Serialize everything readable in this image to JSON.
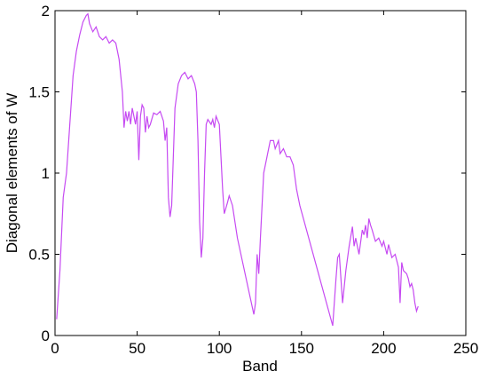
{
  "chart_data": {
    "type": "line",
    "xlabel": "Band",
    "ylabel": "Diagonal elements of W",
    "x": [
      1,
      3,
      5,
      7,
      9,
      11,
      13,
      15,
      17,
      19,
      20,
      21,
      23,
      25,
      27,
      29,
      31,
      33,
      35,
      37,
      39,
      41,
      42,
      43,
      44,
      45,
      46,
      47,
      49,
      50,
      51,
      52,
      53,
      54,
      55,
      56,
      57,
      58,
      60,
      62,
      64,
      66,
      67,
      68,
      69,
      70,
      71,
      72,
      73,
      75,
      77,
      79,
      81,
      83,
      85,
      86,
      87,
      88,
      89,
      90,
      91,
      92,
      93,
      95,
      96,
      97,
      98,
      100,
      101,
      102,
      103,
      105,
      106,
      108,
      111,
      121,
      122,
      123,
      124,
      125,
      127,
      129,
      131,
      133,
      134,
      136,
      137,
      139,
      141,
      143,
      145,
      147,
      149,
      169,
      171,
      172,
      173,
      174,
      175,
      177,
      179,
      181,
      182,
      183,
      185,
      187,
      188,
      189,
      190,
      191,
      192,
      193,
      195,
      197,
      199,
      200,
      202,
      203,
      205,
      207,
      209,
      210,
      211,
      212,
      214,
      215,
      216,
      217,
      218,
      219,
      220,
      221
    ],
    "series": [
      {
        "name": "W",
        "color": "#c64af2",
        "values": [
          0.1,
          0.4,
          0.85,
          1.0,
          1.3,
          1.6,
          1.75,
          1.85,
          1.93,
          1.97,
          1.98,
          1.92,
          1.87,
          1.9,
          1.84,
          1.82,
          1.84,
          1.8,
          1.82,
          1.8,
          1.7,
          1.5,
          1.28,
          1.38,
          1.32,
          1.38,
          1.3,
          1.4,
          1.3,
          1.38,
          1.08,
          1.35,
          1.42,
          1.4,
          1.25,
          1.35,
          1.28,
          1.3,
          1.37,
          1.36,
          1.38,
          1.32,
          1.2,
          1.28,
          0.85,
          0.73,
          0.8,
          1.1,
          1.4,
          1.55,
          1.6,
          1.62,
          1.58,
          1.6,
          1.55,
          1.5,
          1.2,
          0.7,
          0.48,
          0.6,
          1.0,
          1.3,
          1.33,
          1.3,
          1.33,
          1.28,
          1.35,
          1.3,
          1.1,
          0.9,
          0.75,
          0.82,
          0.86,
          0.8,
          0.6,
          0.13,
          0.2,
          0.5,
          0.38,
          0.6,
          1.0,
          1.1,
          1.2,
          1.2,
          1.15,
          1.2,
          1.12,
          1.15,
          1.1,
          1.1,
          1.05,
          0.9,
          0.8,
          0.06,
          0.35,
          0.48,
          0.5,
          0.35,
          0.2,
          0.4,
          0.55,
          0.67,
          0.55,
          0.6,
          0.5,
          0.65,
          0.62,
          0.68,
          0.6,
          0.72,
          0.68,
          0.65,
          0.58,
          0.6,
          0.55,
          0.58,
          0.5,
          0.56,
          0.48,
          0.5,
          0.42,
          0.2,
          0.45,
          0.4,
          0.38,
          0.35,
          0.3,
          0.32,
          0.28,
          0.2,
          0.15,
          0.18
        ]
      }
    ],
    "xlim": [
      0,
      250
    ],
    "xticks": [
      0,
      50,
      100,
      150,
      200,
      250
    ],
    "ylim": [
      0,
      2
    ],
    "yticks": [
      0,
      0.5,
      1,
      1.5,
      2
    ]
  }
}
